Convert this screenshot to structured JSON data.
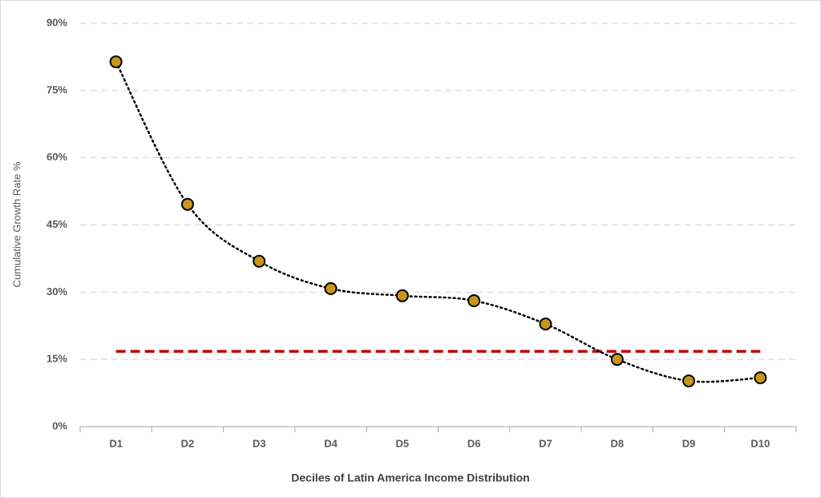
{
  "chart_data": {
    "type": "line",
    "x_label": "Deciles of Latin America Income Distribution",
    "y_label": "Cumulative Growth Rate %",
    "categories": [
      "D1",
      "D2",
      "D3",
      "D4",
      "D5",
      "D6",
      "D7",
      "D8",
      "D9",
      "D10"
    ],
    "values": [
      81.4,
      49.6,
      36.9,
      30.8,
      29.2,
      28.1,
      22.9,
      15.0,
      10.2,
      10.9
    ],
    "color": "#000000",
    "marker_color": "#c8961a",
    "smooth": true,
    "reference_line": {
      "value": 16.8,
      "color": "#c00000"
    },
    "ylim": [
      0,
      90
    ],
    "yticks": [
      {
        "value": 0,
        "label": "0%"
      },
      {
        "value": 15,
        "label": "15%"
      },
      {
        "value": 30,
        "label": "30%"
      },
      {
        "value": 45,
        "label": "45%"
      },
      {
        "value": 60,
        "label": "60%"
      },
      {
        "value": 75,
        "label": "75%"
      },
      {
        "value": 90,
        "label": "90%"
      }
    ],
    "grid": true
  }
}
